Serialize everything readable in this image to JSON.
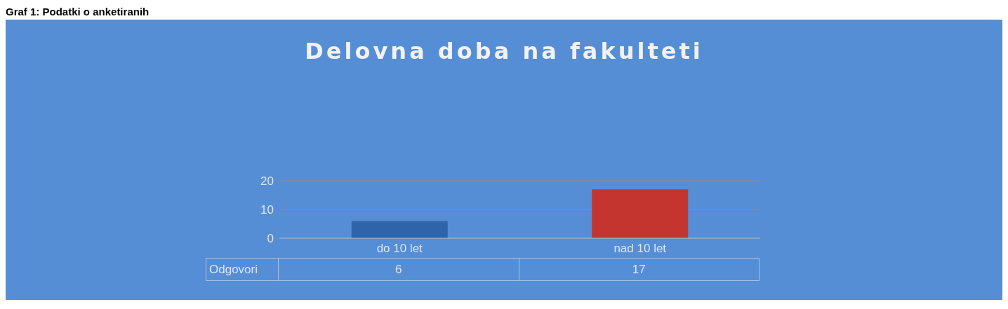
{
  "chart_data": {
    "type": "bar",
    "title": "Delovna doba na fakulteti",
    "annotations": [
      "Graf 1: Podatki o anketiranih"
    ],
    "categories": [
      "do 10 let",
      "nad 10 let"
    ],
    "series": [
      {
        "name": "Odgovori",
        "values": [
          6,
          17
        ],
        "colors": [
          "#2f65a8",
          "#c5352f"
        ]
      }
    ],
    "ylim": [
      0,
      20
    ],
    "yticks": [
      0,
      10,
      20
    ],
    "grid": "y",
    "data_labels": true
  }
}
